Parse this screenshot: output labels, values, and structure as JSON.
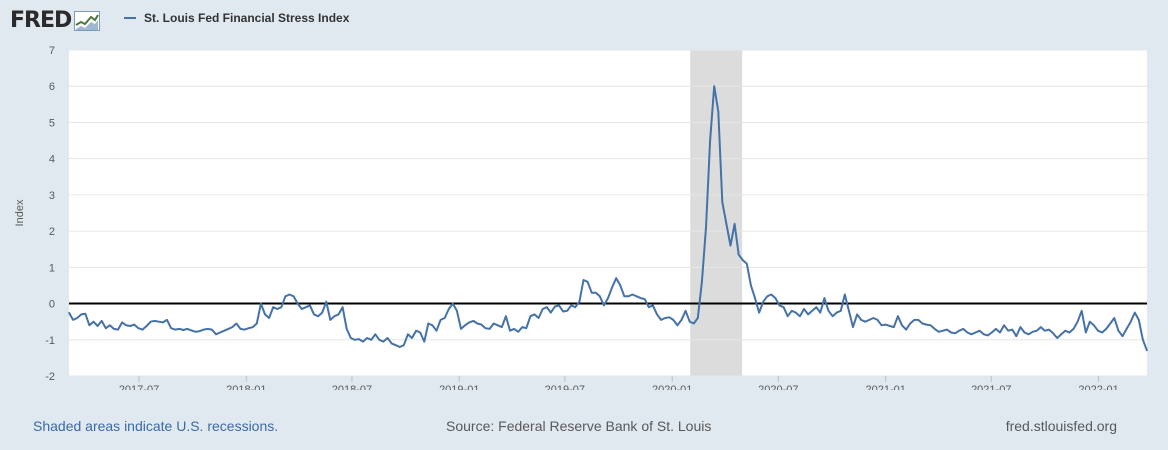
{
  "header": {
    "logo_text": "FRED",
    "legend_label": "St. Louis Fed Financial Stress Index"
  },
  "footer": {
    "recession_note": "Shaded areas indicate U.S. recessions.",
    "source": "Source: Federal Reserve Bank of St. Louis",
    "site": "fred.stlouisfed.org"
  },
  "colors": {
    "line": "#4572a7",
    "recession": "#dcdcdc",
    "zero_line": "#000000",
    "background": "#e1e9f0"
  },
  "chart_data": {
    "type": "line",
    "title": "",
    "xlabel": "",
    "ylabel": "Index",
    "ylim": [
      -2,
      7
    ],
    "yticks": [
      -2,
      -1,
      0,
      1,
      2,
      3,
      4,
      5,
      6,
      7
    ],
    "xlim": [
      "2017-03-03",
      "2022-03-25"
    ],
    "xticks": [
      "2017-07",
      "2018-01",
      "2018-07",
      "2019-01",
      "2019-07",
      "2020-01",
      "2020-07",
      "2021-01",
      "2021-07",
      "2022-01"
    ],
    "grid": "horizontal",
    "recessions": [
      {
        "start": "2020-02-01",
        "end": "2020-04-30"
      }
    ],
    "reference_line": 0,
    "series": [
      {
        "name": "St. Louis Fed Financial Stress Index",
        "points": [
          [
            "2017-03-03",
            -0.25
          ],
          [
            "2017-03-10",
            -0.45
          ],
          [
            "2017-03-17",
            -0.4
          ],
          [
            "2017-03-24",
            -0.3
          ],
          [
            "2017-03-31",
            -0.28
          ],
          [
            "2017-04-07",
            -0.6
          ],
          [
            "2017-04-14",
            -0.5
          ],
          [
            "2017-04-21",
            -0.62
          ],
          [
            "2017-04-28",
            -0.48
          ],
          [
            "2017-05-05",
            -0.68
          ],
          [
            "2017-05-12",
            -0.6
          ],
          [
            "2017-05-19",
            -0.7
          ],
          [
            "2017-05-26",
            -0.72
          ],
          [
            "2017-06-02",
            -0.52
          ],
          [
            "2017-06-09",
            -0.6
          ],
          [
            "2017-06-16",
            -0.62
          ],
          [
            "2017-06-23",
            -0.58
          ],
          [
            "2017-06-30",
            -0.68
          ],
          [
            "2017-07-07",
            -0.72
          ],
          [
            "2017-07-14",
            -0.62
          ],
          [
            "2017-07-21",
            -0.5
          ],
          [
            "2017-07-28",
            -0.48
          ],
          [
            "2017-08-04",
            -0.5
          ],
          [
            "2017-08-11",
            -0.52
          ],
          [
            "2017-08-18",
            -0.45
          ],
          [
            "2017-08-25",
            -0.68
          ],
          [
            "2017-09-01",
            -0.72
          ],
          [
            "2017-09-08",
            -0.7
          ],
          [
            "2017-09-15",
            -0.73
          ],
          [
            "2017-09-22",
            -0.7
          ],
          [
            "2017-09-29",
            -0.74
          ],
          [
            "2017-10-06",
            -0.78
          ],
          [
            "2017-10-13",
            -0.76
          ],
          [
            "2017-10-20",
            -0.72
          ],
          [
            "2017-10-27",
            -0.7
          ],
          [
            "2017-11-03",
            -0.72
          ],
          [
            "2017-11-10",
            -0.85
          ],
          [
            "2017-11-17",
            -0.8
          ],
          [
            "2017-11-24",
            -0.75
          ],
          [
            "2017-12-01",
            -0.7
          ],
          [
            "2017-12-08",
            -0.65
          ],
          [
            "2017-12-15",
            -0.55
          ],
          [
            "2017-12-22",
            -0.7
          ],
          [
            "2017-12-29",
            -0.72
          ],
          [
            "2018-01-05",
            -0.68
          ],
          [
            "2018-01-12",
            -0.65
          ],
          [
            "2018-01-19",
            -0.55
          ],
          [
            "2018-01-26",
            0.0
          ],
          [
            "2018-02-02",
            -0.3
          ],
          [
            "2018-02-09",
            -0.4
          ],
          [
            "2018-02-16",
            -0.1
          ],
          [
            "2018-02-23",
            -0.15
          ],
          [
            "2018-03-02",
            -0.1
          ],
          [
            "2018-03-09",
            0.2
          ],
          [
            "2018-03-16",
            0.25
          ],
          [
            "2018-03-23",
            0.2
          ],
          [
            "2018-03-30",
            0.0
          ],
          [
            "2018-04-06",
            -0.15
          ],
          [
            "2018-04-13",
            -0.1
          ],
          [
            "2018-04-20",
            -0.05
          ],
          [
            "2018-04-27",
            -0.3
          ],
          [
            "2018-05-04",
            -0.35
          ],
          [
            "2018-05-11",
            -0.25
          ],
          [
            "2018-05-18",
            0.05
          ],
          [
            "2018-05-25",
            -0.45
          ],
          [
            "2018-06-01",
            -0.35
          ],
          [
            "2018-06-08",
            -0.3
          ],
          [
            "2018-06-15",
            -0.1
          ],
          [
            "2018-06-22",
            -0.7
          ],
          [
            "2018-06-29",
            -0.95
          ],
          [
            "2018-07-06",
            -1.0
          ],
          [
            "2018-07-13",
            -0.98
          ],
          [
            "2018-07-20",
            -1.05
          ],
          [
            "2018-07-27",
            -0.95
          ],
          [
            "2018-08-03",
            -1.0
          ],
          [
            "2018-08-10",
            -0.85
          ],
          [
            "2018-08-17",
            -1.0
          ],
          [
            "2018-08-24",
            -1.05
          ],
          [
            "2018-08-31",
            -0.95
          ],
          [
            "2018-09-07",
            -1.1
          ],
          [
            "2018-09-14",
            -1.15
          ],
          [
            "2018-09-21",
            -1.2
          ],
          [
            "2018-09-28",
            -1.15
          ],
          [
            "2018-10-05",
            -0.85
          ],
          [
            "2018-10-12",
            -0.95
          ],
          [
            "2018-10-19",
            -0.75
          ],
          [
            "2018-10-26",
            -0.8
          ],
          [
            "2018-11-02",
            -1.05
          ],
          [
            "2018-11-09",
            -0.55
          ],
          [
            "2018-11-16",
            -0.6
          ],
          [
            "2018-11-23",
            -0.75
          ],
          [
            "2018-11-30",
            -0.45
          ],
          [
            "2018-12-07",
            -0.4
          ],
          [
            "2018-12-14",
            -0.15
          ],
          [
            "2018-12-21",
            0.0
          ],
          [
            "2018-12-28",
            -0.2
          ],
          [
            "2019-01-04",
            -0.7
          ],
          [
            "2019-01-11",
            -0.6
          ],
          [
            "2019-01-18",
            -0.52
          ],
          [
            "2019-01-25",
            -0.48
          ],
          [
            "2019-02-01",
            -0.55
          ],
          [
            "2019-02-08",
            -0.58
          ],
          [
            "2019-02-15",
            -0.68
          ],
          [
            "2019-02-22",
            -0.7
          ],
          [
            "2019-03-01",
            -0.55
          ],
          [
            "2019-03-08",
            -0.6
          ],
          [
            "2019-03-15",
            -0.65
          ],
          [
            "2019-03-22",
            -0.35
          ],
          [
            "2019-03-29",
            -0.75
          ],
          [
            "2019-04-05",
            -0.7
          ],
          [
            "2019-04-12",
            -0.78
          ],
          [
            "2019-04-19",
            -0.65
          ],
          [
            "2019-04-26",
            -0.68
          ],
          [
            "2019-05-03",
            -0.35
          ],
          [
            "2019-05-10",
            -0.3
          ],
          [
            "2019-05-17",
            -0.4
          ],
          [
            "2019-05-24",
            -0.15
          ],
          [
            "2019-05-31",
            -0.1
          ],
          [
            "2019-06-07",
            -0.25
          ],
          [
            "2019-06-14",
            -0.08
          ],
          [
            "2019-06-21",
            -0.05
          ],
          [
            "2019-06-28",
            -0.22
          ],
          [
            "2019-07-05",
            -0.2
          ],
          [
            "2019-07-12",
            -0.05
          ],
          [
            "2019-07-19",
            -0.1
          ],
          [
            "2019-07-26",
            0.05
          ],
          [
            "2019-08-02",
            0.65
          ],
          [
            "2019-08-09",
            0.6
          ],
          [
            "2019-08-16",
            0.3
          ],
          [
            "2019-08-23",
            0.3
          ],
          [
            "2019-08-30",
            0.2
          ],
          [
            "2019-09-06",
            -0.05
          ],
          [
            "2019-09-13",
            0.15
          ],
          [
            "2019-09-20",
            0.45
          ],
          [
            "2019-09-27",
            0.7
          ],
          [
            "2019-10-04",
            0.5
          ],
          [
            "2019-10-11",
            0.2
          ],
          [
            "2019-10-18",
            0.2
          ],
          [
            "2019-10-25",
            0.25
          ],
          [
            "2019-11-01",
            0.2
          ],
          [
            "2019-11-08",
            0.15
          ],
          [
            "2019-11-15",
            0.12
          ],
          [
            "2019-11-22",
            -0.1
          ],
          [
            "2019-11-29",
            -0.05
          ],
          [
            "2019-12-06",
            -0.3
          ],
          [
            "2019-12-13",
            -0.45
          ],
          [
            "2019-12-20",
            -0.4
          ],
          [
            "2019-12-27",
            -0.38
          ],
          [
            "2020-01-03",
            -0.45
          ],
          [
            "2020-01-10",
            -0.6
          ],
          [
            "2020-01-17",
            -0.45
          ],
          [
            "2020-01-24",
            -0.2
          ],
          [
            "2020-01-31",
            -0.5
          ],
          [
            "2020-02-07",
            -0.55
          ],
          [
            "2020-02-14",
            -0.4
          ],
          [
            "2020-02-21",
            0.6
          ],
          [
            "2020-02-28",
            2.1
          ],
          [
            "2020-03-06",
            4.5
          ],
          [
            "2020-03-13",
            6.0
          ],
          [
            "2020-03-20",
            5.3
          ],
          [
            "2020-03-27",
            2.8
          ],
          [
            "2020-04-03",
            2.2
          ],
          [
            "2020-04-10",
            1.6
          ],
          [
            "2020-04-17",
            2.2
          ],
          [
            "2020-04-24",
            1.35
          ],
          [
            "2020-05-01",
            1.2
          ],
          [
            "2020-05-08",
            1.1
          ],
          [
            "2020-05-15",
            0.5
          ],
          [
            "2020-05-22",
            0.15
          ],
          [
            "2020-05-29",
            -0.25
          ],
          [
            "2020-06-05",
            0.05
          ],
          [
            "2020-06-12",
            0.2
          ],
          [
            "2020-06-19",
            0.25
          ],
          [
            "2020-06-26",
            0.15
          ],
          [
            "2020-07-03",
            -0.05
          ],
          [
            "2020-07-10",
            -0.1
          ],
          [
            "2020-07-17",
            -0.35
          ],
          [
            "2020-07-24",
            -0.2
          ],
          [
            "2020-07-31",
            -0.25
          ],
          [
            "2020-08-07",
            -0.35
          ],
          [
            "2020-08-14",
            -0.15
          ],
          [
            "2020-08-21",
            -0.3
          ],
          [
            "2020-08-28",
            -0.2
          ],
          [
            "2020-09-04",
            -0.1
          ],
          [
            "2020-09-11",
            -0.25
          ],
          [
            "2020-09-18",
            0.15
          ],
          [
            "2020-09-25",
            -0.2
          ],
          [
            "2020-10-02",
            -0.35
          ],
          [
            "2020-10-09",
            -0.25
          ],
          [
            "2020-10-16",
            -0.2
          ],
          [
            "2020-10-23",
            0.25
          ],
          [
            "2020-10-30",
            -0.2
          ],
          [
            "2020-11-06",
            -0.65
          ],
          [
            "2020-11-13",
            -0.3
          ],
          [
            "2020-11-20",
            -0.45
          ],
          [
            "2020-11-27",
            -0.5
          ],
          [
            "2020-12-04",
            -0.45
          ],
          [
            "2020-12-11",
            -0.4
          ],
          [
            "2020-12-18",
            -0.45
          ],
          [
            "2020-12-25",
            -0.6
          ],
          [
            "2021-01-01",
            -0.58
          ],
          [
            "2021-01-08",
            -0.62
          ],
          [
            "2021-01-15",
            -0.65
          ],
          [
            "2021-01-22",
            -0.35
          ],
          [
            "2021-01-29",
            -0.6
          ],
          [
            "2021-02-05",
            -0.72
          ],
          [
            "2021-02-12",
            -0.55
          ],
          [
            "2021-02-19",
            -0.45
          ],
          [
            "2021-02-26",
            -0.45
          ],
          [
            "2021-03-05",
            -0.55
          ],
          [
            "2021-03-12",
            -0.58
          ],
          [
            "2021-03-19",
            -0.6
          ],
          [
            "2021-03-26",
            -0.7
          ],
          [
            "2021-04-02",
            -0.78
          ],
          [
            "2021-04-09",
            -0.75
          ],
          [
            "2021-04-16",
            -0.72
          ],
          [
            "2021-04-23",
            -0.8
          ],
          [
            "2021-04-30",
            -0.82
          ],
          [
            "2021-05-07",
            -0.75
          ],
          [
            "2021-05-14",
            -0.7
          ],
          [
            "2021-05-21",
            -0.8
          ],
          [
            "2021-05-28",
            -0.85
          ],
          [
            "2021-06-04",
            -0.8
          ],
          [
            "2021-06-11",
            -0.75
          ],
          [
            "2021-06-18",
            -0.85
          ],
          [
            "2021-06-25",
            -0.88
          ],
          [
            "2021-07-02",
            -0.8
          ],
          [
            "2021-07-09",
            -0.7
          ],
          [
            "2021-07-16",
            -0.8
          ],
          [
            "2021-07-23",
            -0.6
          ],
          [
            "2021-07-30",
            -0.75
          ],
          [
            "2021-08-06",
            -0.72
          ],
          [
            "2021-08-13",
            -0.9
          ],
          [
            "2021-08-20",
            -0.65
          ],
          [
            "2021-08-27",
            -0.8
          ],
          [
            "2021-09-03",
            -0.85
          ],
          [
            "2021-09-10",
            -0.78
          ],
          [
            "2021-09-17",
            -0.75
          ],
          [
            "2021-09-24",
            -0.65
          ],
          [
            "2021-10-01",
            -0.75
          ],
          [
            "2021-10-08",
            -0.72
          ],
          [
            "2021-10-15",
            -0.82
          ],
          [
            "2021-10-22",
            -0.95
          ],
          [
            "2021-10-29",
            -0.85
          ],
          [
            "2021-11-05",
            -0.75
          ],
          [
            "2021-11-12",
            -0.8
          ],
          [
            "2021-11-19",
            -0.7
          ],
          [
            "2021-11-26",
            -0.5
          ],
          [
            "2021-12-03",
            -0.2
          ],
          [
            "2021-12-10",
            -0.8
          ],
          [
            "2021-12-17",
            -0.5
          ],
          [
            "2021-12-24",
            -0.6
          ],
          [
            "2021-12-31",
            -0.75
          ],
          [
            "2022-01-07",
            -0.8
          ],
          [
            "2022-01-14",
            -0.7
          ],
          [
            "2022-01-21",
            -0.55
          ],
          [
            "2022-01-28",
            -0.4
          ],
          [
            "2022-02-04",
            -0.75
          ],
          [
            "2022-02-11",
            -0.9
          ],
          [
            "2022-02-18",
            -0.7
          ],
          [
            "2022-02-25",
            -0.5
          ],
          [
            "2022-03-04",
            -0.25
          ],
          [
            "2022-03-11",
            -0.45
          ],
          [
            "2022-03-18",
            -1.0
          ],
          [
            "2022-03-25",
            -1.3
          ]
        ]
      }
    ]
  }
}
